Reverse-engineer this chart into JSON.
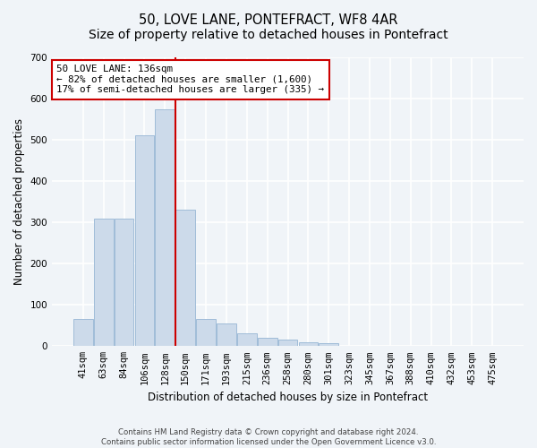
{
  "title": "50, LOVE LANE, PONTEFRACT, WF8 4AR",
  "subtitle": "Size of property relative to detached houses in Pontefract",
  "xlabel": "Distribution of detached houses by size in Pontefract",
  "ylabel": "Number of detached properties",
  "categories": [
    "41sqm",
    "63sqm",
    "84sqm",
    "106sqm",
    "128sqm",
    "150sqm",
    "171sqm",
    "193sqm",
    "215sqm",
    "236sqm",
    "258sqm",
    "280sqm",
    "301sqm",
    "323sqm",
    "345sqm",
    "367sqm",
    "388sqm",
    "410sqm",
    "432sqm",
    "453sqm",
    "475sqm"
  ],
  "values": [
    65,
    308,
    308,
    510,
    575,
    330,
    65,
    55,
    30,
    20,
    15,
    10,
    8,
    0,
    0,
    0,
    0,
    0,
    0,
    0,
    0
  ],
  "bar_color": "#ccdaea",
  "bar_edge_color": "#a0bcd8",
  "vline_color": "#cc0000",
  "vline_index": 4.5,
  "annotation_text": "50 LOVE LANE: 136sqm\n← 82% of detached houses are smaller (1,600)\n17% of semi-detached houses are larger (335) →",
  "annotation_box_color": "#ffffff",
  "annotation_box_edge": "#cc0000",
  "footer_line1": "Contains HM Land Registry data © Crown copyright and database right 2024.",
  "footer_line2": "Contains public sector information licensed under the Open Government Licence v3.0.",
  "ylim": [
    0,
    700
  ],
  "yticks": [
    0,
    100,
    200,
    300,
    400,
    500,
    600,
    700
  ],
  "background_color": "#f0f4f8",
  "plot_bg_color": "#f0f4f8",
  "grid_color": "#ffffff",
  "title_fontsize": 10.5,
  "tick_fontsize": 7.5,
  "label_fontsize": 8.5,
  "annot_fontsize": 7.8
}
